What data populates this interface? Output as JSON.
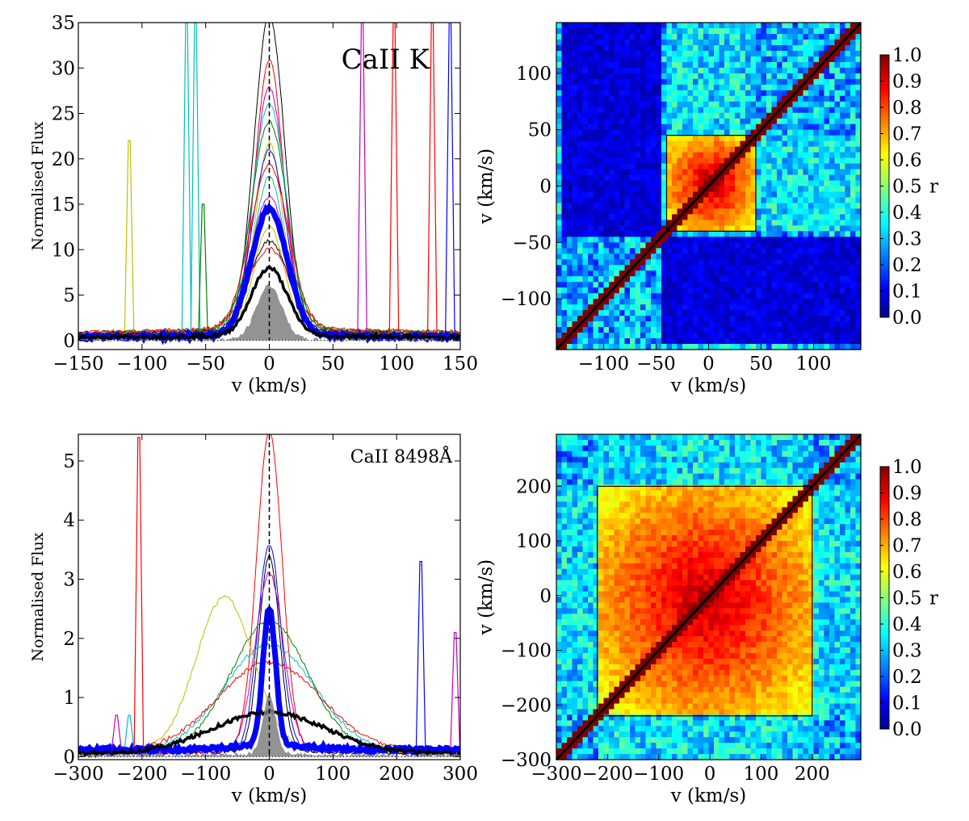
{
  "chart_data": [
    {
      "type": "line",
      "panel": "top-left",
      "annotation": "CaII K",
      "xlabel": "v (km/s)",
      "ylabel": "Normalised Flux",
      "xlim": [
        -150,
        150
      ],
      "ylim": [
        -1,
        35
      ],
      "xticks": [
        -150,
        -100,
        -50,
        0,
        50,
        100,
        150
      ],
      "yticks": [
        0,
        5,
        10,
        15,
        20,
        25,
        30,
        35
      ],
      "center_line_x": 0,
      "spikes": [
        {
          "x": -110,
          "peak": 22,
          "color": "#bfbf00"
        },
        {
          "x": -65,
          "peak": 35,
          "color": "#00bfbf"
        },
        {
          "x": -58,
          "peak": 35,
          "color": "#00bfbf"
        },
        {
          "x": -52,
          "peak": 15,
          "color": "#008000"
        },
        {
          "x": 73,
          "peak": 35,
          "color": "#bf00bf"
        },
        {
          "x": 98,
          "peak": 35,
          "color": "#ff0000"
        },
        {
          "x": 128,
          "peak": 35,
          "color": "#ff0000"
        },
        {
          "x": 142,
          "peak": 35,
          "color": "#0000ff"
        }
      ],
      "series": [
        {
          "name": "peak-1",
          "peak": 35,
          "width": 12,
          "base": 0.8,
          "color": "#000000"
        },
        {
          "name": "peak-2",
          "peak": 30,
          "width": 11,
          "base": 1.0,
          "color": "#ff0000"
        },
        {
          "name": "peak-3",
          "peak": 27,
          "width": 12,
          "base": 0.9,
          "color": "#bf00bf"
        },
        {
          "name": "peak-4",
          "peak": 25,
          "width": 13,
          "base": 1.2,
          "color": "#00bfbf"
        },
        {
          "name": "peak-5",
          "peak": 23,
          "width": 14,
          "base": 1.1,
          "color": "#008000"
        },
        {
          "name": "peak-6",
          "peak": 21,
          "width": 11,
          "base": 0.7,
          "color": "#bfbf00"
        },
        {
          "name": "peak-7",
          "peak": 20,
          "width": 13,
          "base": 0.9,
          "color": "#0000ff"
        },
        {
          "name": "peak-8",
          "peak": 18,
          "width": 15,
          "base": 1.3,
          "color": "#ff0000"
        },
        {
          "name": "peak-9",
          "peak": 17,
          "width": 12,
          "base": 1.0,
          "color": "#00bfbf"
        },
        {
          "name": "peak-10",
          "peak": 15,
          "width": 14,
          "base": 0.8,
          "color": "#bf00bf"
        },
        {
          "name": "peak-11",
          "peak": 13,
          "width": 16,
          "base": 1.2,
          "color": "#008000"
        },
        {
          "name": "peak-12",
          "peak": 12,
          "width": 12,
          "base": 0.6,
          "color": "#bfbf00"
        },
        {
          "name": "peak-13",
          "peak": 10,
          "width": 15,
          "base": 1.0,
          "color": "#000000"
        },
        {
          "name": "peak-14",
          "peak": 9,
          "width": 17,
          "base": 1.1,
          "color": "#ff0000"
        },
        {
          "name": "mean",
          "peak": 14,
          "width": 14,
          "base": 0.5,
          "color": "#0000ff",
          "thick": true
        },
        {
          "name": "median",
          "peak": 7.5,
          "width": 14,
          "base": 0.5,
          "color": "#000000",
          "thick": true
        },
        {
          "name": "min-envelope",
          "peak": 6,
          "width": 10,
          "base": 0.1,
          "color": "#808080",
          "fill": true
        }
      ]
    },
    {
      "type": "heatmap",
      "panel": "top-right",
      "xlabel": "v (km/s)",
      "ylabel": "v (km/s)",
      "xlim": [
        -145,
        145
      ],
      "ylim": [
        -145,
        145
      ],
      "xticks": [
        -100,
        -50,
        0,
        50,
        100
      ],
      "yticks": [
        -100,
        -50,
        0,
        50,
        100
      ],
      "colorbar_label": "r",
      "colorbar_range": [
        0.0,
        1.0
      ],
      "colorbar_ticks": [
        "0.0",
        "0.1",
        "0.2",
        "0.3",
        "0.4",
        "0.5",
        "0.6",
        "0.7",
        "0.8",
        "0.9",
        "1.0"
      ],
      "core_range": [
        -40,
        45
      ],
      "low_band": [
        -140,
        -45
      ]
    },
    {
      "type": "line",
      "panel": "bottom-left",
      "annotation": "CaII 8498Å",
      "xlabel": "v (km/s)",
      "ylabel": "Normalised Flux",
      "xlim": [
        -300,
        300
      ],
      "ylim": [
        -0.05,
        5.45
      ],
      "xticks": [
        -300,
        -200,
        -100,
        0,
        100,
        200,
        300
      ],
      "yticks": [
        0,
        1,
        2,
        3,
        4,
        5
      ],
      "center_line_x": 0,
      "spikes": [
        {
          "x": -205,
          "peak": 5.4,
          "color": "#ff0000"
        },
        {
          "x": -240,
          "peak": 0.7,
          "color": "#bf00bf"
        },
        {
          "x": -220,
          "peak": 0.7,
          "color": "#00bfbf"
        },
        {
          "x": 238,
          "peak": 3.3,
          "color": "#0000ff"
        },
        {
          "x": 292,
          "peak": 2.1,
          "color": "#bf00bf"
        }
      ],
      "series": [
        {
          "name": "peak-1",
          "peak": 5.4,
          "width": 20,
          "base": 0.1,
          "color": "#ff0000"
        },
        {
          "name": "peak-2",
          "peak": 3.5,
          "width": 18,
          "base": 0.1,
          "color": "#0000ff"
        },
        {
          "name": "peak-3",
          "peak": 3.3,
          "width": 16,
          "base": 0.1,
          "color": "#000000"
        },
        {
          "name": "peak-4",
          "peak": 3.0,
          "width": 22,
          "base": 0.1,
          "color": "#bf00bf"
        },
        {
          "name": "peak-5",
          "peak": 2.2,
          "width": 60,
          "base": 0.1,
          "color": "#008000"
        },
        {
          "name": "peak-6",
          "peak": 1.8,
          "width": 70,
          "base": 0.1,
          "color": "#00bfbf"
        },
        {
          "name": "peak-7",
          "peak": 1.5,
          "width": 80,
          "base": 0.1,
          "color": "#ff0000"
        },
        {
          "name": "wide-1",
          "peak": 2.6,
          "width": 45,
          "base": 0.1,
          "center": -70,
          "color": "#bfbf00"
        },
        {
          "name": "mean",
          "peak": 2.3,
          "width": 10,
          "base": 0.2,
          "color": "#0000ff",
          "thick": true
        },
        {
          "name": "median",
          "peak": 0.7,
          "width": 90,
          "base": 0.05,
          "color": "#000000",
          "thick": true
        },
        {
          "name": "min-envelope",
          "peak": 1.0,
          "width": 10,
          "base": 0.05,
          "color": "#808080",
          "fill": true
        }
      ]
    },
    {
      "type": "heatmap",
      "panel": "bottom-right",
      "xlabel": "v (km/s)",
      "ylabel": "v (km/s)",
      "xlim": [
        -300,
        295
      ],
      "ylim": [
        -300,
        295
      ],
      "xticks": [
        -300,
        -200,
        -100,
        0,
        100,
        200
      ],
      "yticks": [
        -300,
        -200,
        -100,
        0,
        100,
        200
      ],
      "colorbar_label": "r",
      "colorbar_range": [
        0.0,
        1.0
      ],
      "colorbar_ticks": [
        "0.0",
        "0.1",
        "0.2",
        "0.3",
        "0.4",
        "0.5",
        "0.6",
        "0.7",
        "0.8",
        "0.9",
        "1.0"
      ],
      "core_range": [
        -220,
        200
      ],
      "low_band": null
    }
  ]
}
